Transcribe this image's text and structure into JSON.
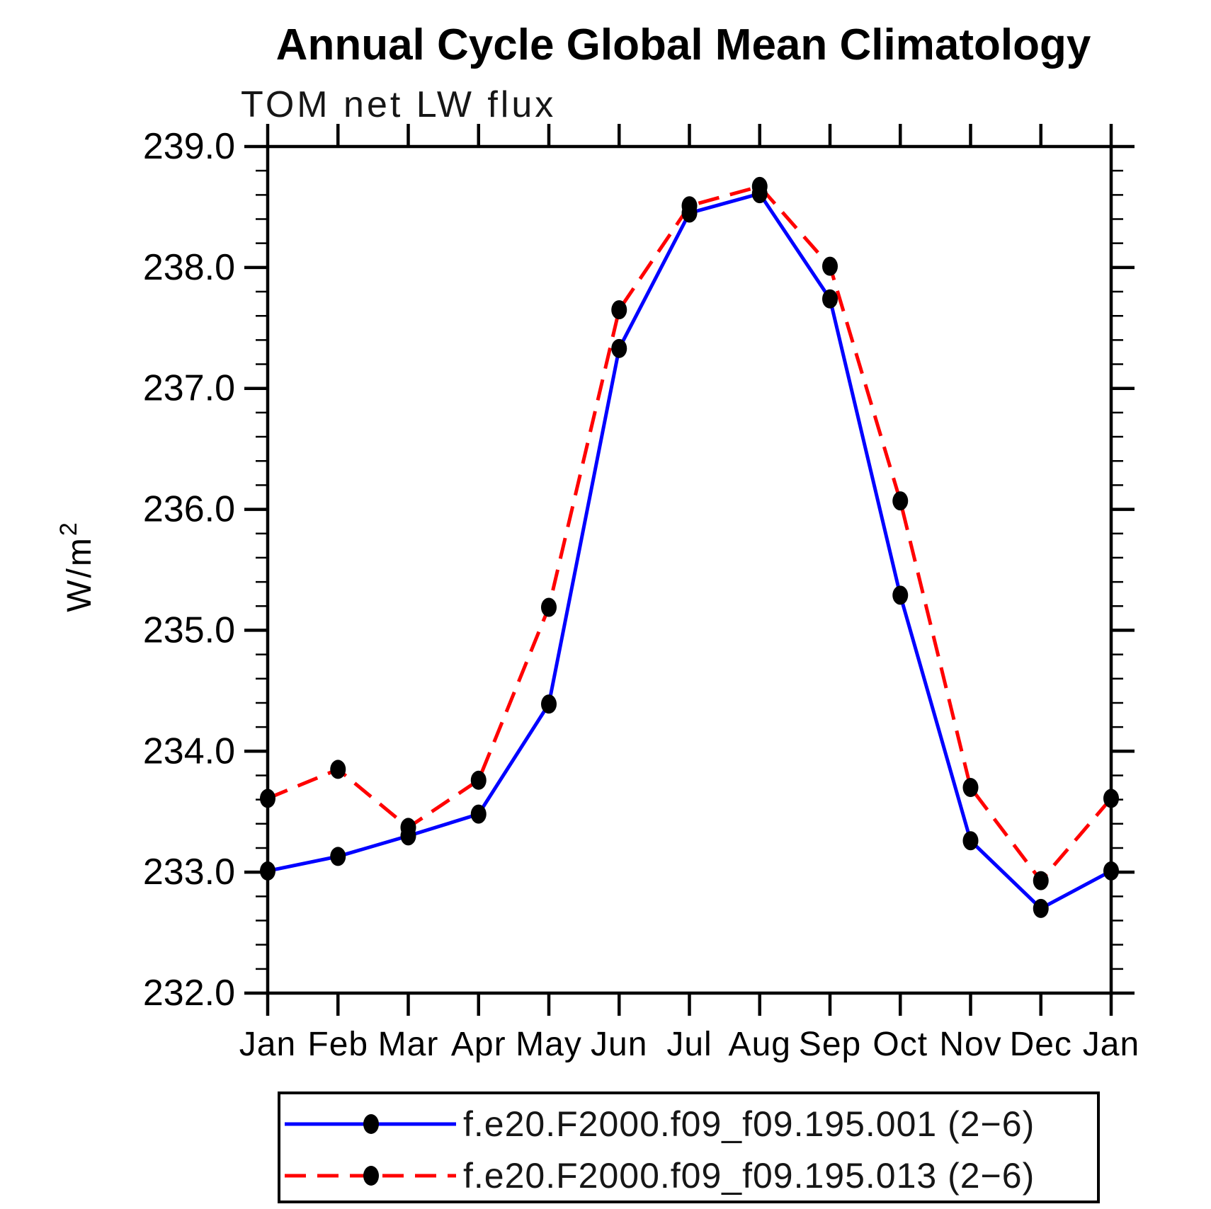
{
  "title": "Annual Cycle Global Mean Climatology",
  "subtitle": "TOM net LW flux",
  "chart_data": {
    "type": "line",
    "title": "Annual Cycle Global Mean Climatology",
    "subtitle": "TOM net LW flux",
    "xlabel": "",
    "ylabel": "W/m²",
    "ylabel_base": "W/m",
    "ylabel_sup": "2",
    "x_categories": [
      "Jan",
      "Feb",
      "Mar",
      "Apr",
      "May",
      "Jun",
      "Jul",
      "Aug",
      "Sep",
      "Oct",
      "Nov",
      "Dec",
      "Jan"
    ],
    "ylim": [
      232.0,
      239.0
    ],
    "y_major_step": 1.0,
    "y_minor_step": 0.2,
    "y_tick_labels": [
      "232.0",
      "233.0",
      "234.0",
      "235.0",
      "236.0",
      "237.0",
      "238.0",
      "239.0"
    ],
    "grid": false,
    "legend_position": "bottom",
    "axis_color": "#000000",
    "marker_color": "#000000",
    "series": [
      {
        "name": "f.e20.F2000.f09_f09.195.001 (2−6)",
        "color": "#0000ff",
        "style": "solid",
        "marker": "filled-circle",
        "values": [
          233.01,
          233.13,
          233.3,
          233.48,
          234.39,
          237.33,
          238.45,
          238.61,
          237.74,
          235.29,
          233.26,
          232.7,
          233.01
        ]
      },
      {
        "name": "f.e20.F2000.f09_f09.195.013 (2−6)",
        "color": "#ff0000",
        "style": "dashed",
        "marker": "filled-circle",
        "values": [
          233.61,
          233.85,
          233.37,
          233.76,
          235.19,
          237.65,
          238.51,
          238.67,
          238.01,
          236.07,
          233.7,
          232.93,
          233.61
        ]
      }
    ]
  }
}
